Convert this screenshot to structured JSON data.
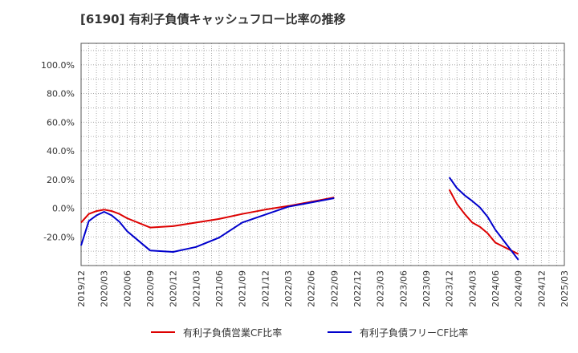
{
  "chart_data": {
    "type": "line",
    "title": "[6190]  有利子負債キャッシュフロー比率の推移",
    "xlabel": "",
    "ylabel": "",
    "ylim": [
      -40,
      115
    ],
    "y_ticks": [
      "100.0%",
      "80.0%",
      "60.0%",
      "40.0%",
      "20.0%",
      "0.0%",
      "-20.0%"
    ],
    "y_tick_values": [
      100,
      80,
      60,
      40,
      20,
      0,
      -20
    ],
    "x_ticks": [
      "2019/12",
      "2020/03",
      "2020/06",
      "2020/09",
      "2020/12",
      "2021/03",
      "2021/06",
      "2021/09",
      "2021/12",
      "2022/03",
      "2022/06",
      "2022/09",
      "2022/12",
      "2023/03",
      "2023/06",
      "2023/09",
      "2023/12",
      "2024/03",
      "2024/06",
      "2024/09",
      "2024/12",
      "2025/03"
    ],
    "x_range": [
      "2019/12",
      "2025/03"
    ],
    "grid": true,
    "legend_position": "bottom",
    "series": [
      {
        "name": "有利子負債営業CF比率",
        "color": "#dd0000",
        "segments": [
          [
            [
              "2019/12",
              -10
            ],
            [
              "2020/01",
              -4
            ],
            [
              "2020/02",
              -2
            ],
            [
              "2020/03",
              -1
            ],
            [
              "2020/04",
              -2
            ],
            [
              "2020/05",
              -4
            ],
            [
              "2020/06",
              -7
            ],
            [
              "2020/09",
              -13.5
            ],
            [
              "2020/12",
              -12.5
            ],
            [
              "2021/03",
              -10
            ],
            [
              "2021/06",
              -7.5
            ],
            [
              "2021/09",
              -4
            ],
            [
              "2021/12",
              -1
            ],
            [
              "2022/03",
              1.5
            ],
            [
              "2022/06",
              4.5
            ],
            [
              "2022/09",
              7.5
            ]
          ],
          [
            [
              "2023/12",
              13
            ],
            [
              "2024/01",
              3
            ],
            [
              "2024/02",
              -4
            ],
            [
              "2024/03",
              -10
            ],
            [
              "2024/04",
              -13
            ],
            [
              "2024/05",
              -17.5
            ],
            [
              "2024/06",
              -24
            ],
            [
              "2024/09",
              -32
            ]
          ]
        ]
      },
      {
        "name": "有利子負債フリーCF比率",
        "color": "#0000cc",
        "segments": [
          [
            [
              "2019/12",
              -26
            ],
            [
              "2020/01",
              -9
            ],
            [
              "2020/02",
              -5
            ],
            [
              "2020/03",
              -2.5
            ],
            [
              "2020/04",
              -5
            ],
            [
              "2020/05",
              -9.5
            ],
            [
              "2020/06",
              -16
            ],
            [
              "2020/07",
              -20.5
            ],
            [
              "2020/08",
              -25
            ],
            [
              "2020/09",
              -29.5
            ],
            [
              "2020/12",
              -30.5
            ],
            [
              "2021/03",
              -27
            ],
            [
              "2021/06",
              -20.5
            ],
            [
              "2021/09",
              -10
            ],
            [
              "2021/12",
              -4.5
            ],
            [
              "2022/03",
              1
            ],
            [
              "2022/06",
              4
            ],
            [
              "2022/09",
              7
            ]
          ],
          [
            [
              "2023/12",
              21.5
            ],
            [
              "2024/01",
              14
            ],
            [
              "2024/02",
              9
            ],
            [
              "2024/03",
              5
            ],
            [
              "2024/04",
              0.5
            ],
            [
              "2024/05",
              -6
            ],
            [
              "2024/06",
              -15
            ],
            [
              "2024/09",
              -36
            ]
          ]
        ]
      }
    ]
  }
}
